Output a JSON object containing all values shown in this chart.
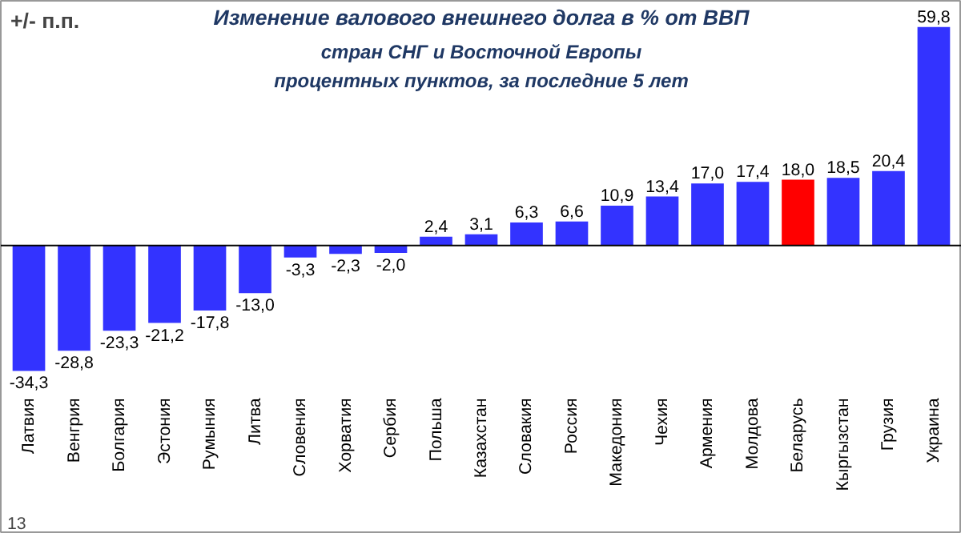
{
  "chart_data": {
    "type": "bar",
    "title": "Изменение валового внешнего долга в % от ВВП",
    "subtitle": "стран СНГ и Восточной Европы\nпроцентных пунктов, за последние 5 лет",
    "ylabel": "+/- п.п.",
    "annotations": [
      "13"
    ],
    "categories": [
      "Латвия",
      "Венгрия",
      "Болгария",
      "Эстония",
      "Румыния",
      "Литва",
      "Словения",
      "Хорватия",
      "Сербия",
      "Польша",
      "Казахстан",
      "Словакия",
      "Россия",
      "Македония",
      "Чехия",
      "Армения",
      "Молдова",
      "Беларусь",
      "Кыргызстан",
      "Грузия",
      "Украина"
    ],
    "values": [
      -34.3,
      -28.8,
      -23.3,
      -21.2,
      -17.8,
      -13.0,
      -3.3,
      -2.3,
      -2.0,
      2.4,
      3.1,
      6.3,
      6.6,
      10.9,
      13.4,
      17.0,
      17.4,
      18.0,
      18.5,
      20.4,
      59.8
    ],
    "colors": [
      "#3333ff",
      "#3333ff",
      "#3333ff",
      "#3333ff",
      "#3333ff",
      "#3333ff",
      "#3333ff",
      "#3333ff",
      "#3333ff",
      "#3333ff",
      "#3333ff",
      "#3333ff",
      "#3333ff",
      "#3333ff",
      "#3333ff",
      "#3333ff",
      "#3333ff",
      "#ff0000",
      "#3333ff",
      "#3333ff",
      "#3333ff"
    ],
    "value_labels": [
      "-34,3",
      "-28,8",
      "-23,3",
      "-21,2",
      "-17,8",
      "-13,0",
      "-3,3",
      "-2,3",
      "-2,0",
      "2,4",
      "3,1",
      "6,3",
      "6,6",
      "10,9",
      "13,4",
      "17,0",
      "17,4",
      "18,0",
      "18,5",
      "20,4",
      "59,8"
    ]
  }
}
